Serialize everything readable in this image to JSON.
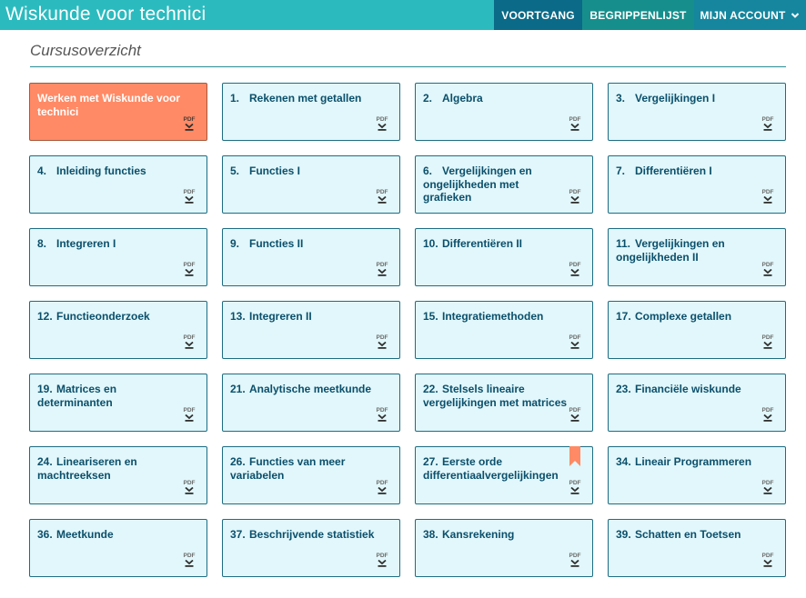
{
  "app": {
    "title": "Wiskunde voor technici"
  },
  "nav": {
    "voortgang": "VOORTGANG",
    "begrippenlijst": "BEGRIPPENLIJST",
    "account": "MIJN ACCOUNT"
  },
  "page": {
    "title": "Cursusoverzicht"
  },
  "pdf_label": "PDF",
  "colors": {
    "header": "#2bbbbf",
    "card_bg": "#e1f7fb",
    "card_border": "#1d6c82",
    "active_card": "#ff8a65",
    "bookmark": "#ff8a65"
  },
  "chapters": [
    {
      "num": "",
      "title": "Werken met Wiskunde voor technici",
      "active": true
    },
    {
      "num": "1.",
      "title": "Rekenen met getallen"
    },
    {
      "num": "2.",
      "title": "Algebra"
    },
    {
      "num": "3.",
      "title": "Vergelijkingen I"
    },
    {
      "num": "4.",
      "title": "Inleiding functies"
    },
    {
      "num": "5.",
      "title": "Functies I"
    },
    {
      "num": "6.",
      "title": "Vergelijkingen en ongelijkheden met grafieken"
    },
    {
      "num": "7.",
      "title": "Differentiëren I"
    },
    {
      "num": "8.",
      "title": "Integreren I"
    },
    {
      "num": "9.",
      "title": "Functies II"
    },
    {
      "num": "10.",
      "title": "Differentiëren II"
    },
    {
      "num": "11.",
      "title": "Vergelijkingen en ongelijkheden II"
    },
    {
      "num": "12.",
      "title": "Functieonderzoek"
    },
    {
      "num": "13.",
      "title": "Integreren II"
    },
    {
      "num": "15.",
      "title": "Integratiemethoden"
    },
    {
      "num": "17.",
      "title": "Complexe getallen"
    },
    {
      "num": "19.",
      "title": "Matrices en determinanten"
    },
    {
      "num": "21.",
      "title": "Analytische meetkunde"
    },
    {
      "num": "22.",
      "title": "Stelsels lineaire vergelijkingen met matrices"
    },
    {
      "num": "23.",
      "title": "Financiële wiskunde"
    },
    {
      "num": "24.",
      "title": "Lineariseren en machtreeksen"
    },
    {
      "num": "26.",
      "title": "Functies van meer variabelen"
    },
    {
      "num": "27.",
      "title": "Eerste orde differentiaalvergelijkingen",
      "bookmarked": true
    },
    {
      "num": "34.",
      "title": "Lineair Programmeren"
    },
    {
      "num": "36.",
      "title": "Meetkunde"
    },
    {
      "num": "37.",
      "title": "Beschrijvende statistiek"
    },
    {
      "num": "38.",
      "title": "Kansrekening"
    },
    {
      "num": "39.",
      "title": "Schatten en Toetsen"
    }
  ]
}
